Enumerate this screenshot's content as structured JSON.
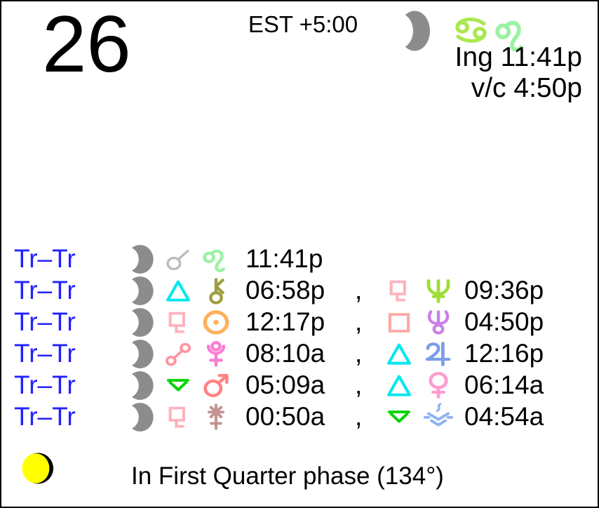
{
  "day": "26",
  "timezone": "EST +5:00",
  "header": {
    "moon_icon": "moon",
    "sign_icons": [
      "cancer",
      "leo"
    ],
    "ingress_label": "Ing 11:41p",
    "void_of_course_label": "v/c 4:50p"
  },
  "transits": {
    "separator": ",",
    "rows": [
      {
        "label": "Tr–Tr",
        "left": {
          "body": "moon",
          "aspect": "conjunction",
          "target": "leo",
          "time": "11:41p"
        }
      },
      {
        "label": "Tr–Tr",
        "left": {
          "body": "moon",
          "aspect": "trine",
          "target": "chiron",
          "time": "06:58p"
        },
        "right": {
          "aspect": "sesquiquadrate",
          "target": "neptune",
          "time": "09:36p"
        }
      },
      {
        "label": "Tr–Tr",
        "left": {
          "body": "moon",
          "aspect": "sesquiquadrate",
          "target": "sun",
          "time": "12:17p"
        },
        "right": {
          "aspect": "square",
          "target": "uranus",
          "time": "04:50p"
        }
      },
      {
        "label": "Tr–Tr",
        "left": {
          "body": "moon",
          "aspect": "opposition",
          "target": "pluto",
          "time": "08:10a"
        },
        "right": {
          "aspect": "trine",
          "target": "jupiter",
          "time": "12:16p"
        }
      },
      {
        "label": "Tr–Tr",
        "left": {
          "body": "moon",
          "aspect": "quincunx",
          "target": "mars",
          "time": "05:09a"
        },
        "right": {
          "aspect": "trine",
          "target": "venus",
          "time": "06:14a"
        }
      },
      {
        "label": "Tr–Tr",
        "left": {
          "body": "moon",
          "aspect": "sesquiquadrate",
          "target": "juno",
          "time": "00:50a"
        },
        "right": {
          "aspect": "quincunx",
          "target": "vesta",
          "time": "04:54a"
        }
      }
    ]
  },
  "footer": {
    "phase_icon": "waxing-gibbous-moon",
    "phase_text": "In First Quarter phase (134°)"
  },
  "colors": {
    "label_blue": "#2121FF",
    "text_black": "#000000",
    "moon": "#8C8C8C",
    "conjunction": "#BBBBBB",
    "leo": "#9AF2A4",
    "cancer": "#A9E84F",
    "trine": "#00E8F0",
    "chiron": "#9D9D3E",
    "sesquiquadrate": "#FFB1BC",
    "sun": "#FFB05C",
    "opposition": "#FF93A1",
    "pluto": "#FA7FD2",
    "quincunx": "#00D400",
    "mars": "#FF8282",
    "juno": "#C49494",
    "neptune": "#9EDE35",
    "square": "#FFA7A7",
    "uranus": "#C980E4",
    "jupiter": "#7D9EE8",
    "venus": "#FF9CD0",
    "vesta": "#90B4F2",
    "phase_yellow": "#FFFF00",
    "phase_dark": "#000000"
  }
}
